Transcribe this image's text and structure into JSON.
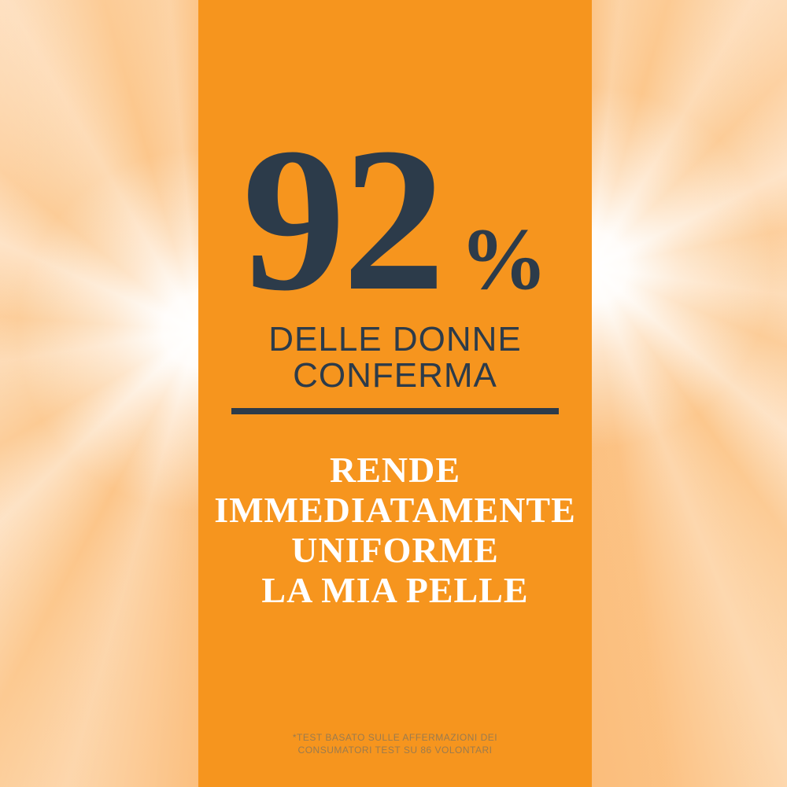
{
  "stat": {
    "value": "92",
    "percent_sign": "%"
  },
  "subtitle": {
    "lines": [
      "DELLE DONNE",
      "CONFERMA"
    ]
  },
  "claim": {
    "lines": [
      "RENDE",
      "IMMEDIATAMENTE",
      "UNIFORME",
      "LA MIA PELLE"
    ]
  },
  "footnote": {
    "lines": [
      "*TEST BASATO SULLE AFFERMAZIONI DEI",
      "CONSUMATORI TEST SU 86 VOLONTARI"
    ]
  },
  "colors": {
    "panel_orange": "#F6951E",
    "background_peach": "#FCC88E",
    "navy_text": "#2C3B4A",
    "claim_text": "#FFFFFF",
    "footnote_text": "#9A7B4F",
    "sunburst_white": "#FFFFFF"
  }
}
